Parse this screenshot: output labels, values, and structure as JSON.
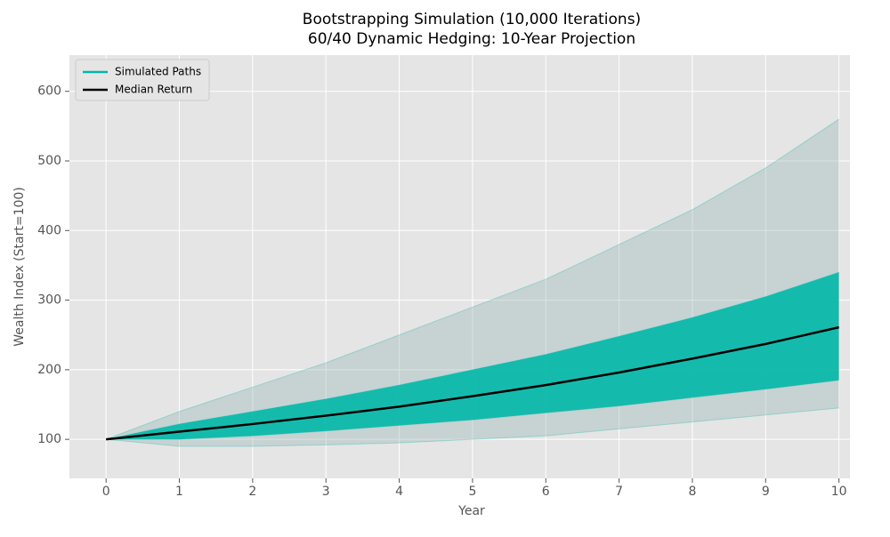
{
  "chart_data": {
    "type": "fan",
    "title": "Bootstrapping Simulation (10,000 Iterations)",
    "subtitle": "60/40 Dynamic Hedging: 10-Year Projection",
    "x_label": "Year",
    "y_label": "Wealth Index (Start=100)",
    "x": [
      0,
      1,
      2,
      3,
      4,
      5,
      6,
      7,
      8,
      9,
      10
    ],
    "xlim": [
      -0.5,
      10.15
    ],
    "xticks": [
      0,
      1,
      2,
      3,
      4,
      5,
      6,
      7,
      8,
      9,
      10
    ],
    "ylim": [
      44,
      652
    ],
    "yticks": [
      100,
      200,
      300,
      400,
      500,
      600
    ],
    "grid": true,
    "legend": "upper left",
    "series": [
      {
        "name": "Simulated Paths",
        "color": "#00b8a9",
        "paths": [
          [
            100,
            90,
            90,
            92,
            95,
            100,
            105,
            115,
            125,
            135,
            145
          ],
          [
            100,
            100,
            105,
            112,
            120,
            128,
            138,
            148,
            160,
            172,
            185
          ],
          [
            100,
            122,
            140,
            158,
            178,
            200,
            222,
            248,
            275,
            305,
            340
          ],
          [
            100,
            140,
            175,
            210,
            250,
            290,
            330,
            380,
            430,
            490,
            560
          ]
        ]
      },
      {
        "name": "Median Return",
        "color": "#000000",
        "values": [
          100,
          111,
          122,
          134,
          147,
          162,
          178,
          196,
          216,
          237,
          261
        ]
      }
    ]
  }
}
